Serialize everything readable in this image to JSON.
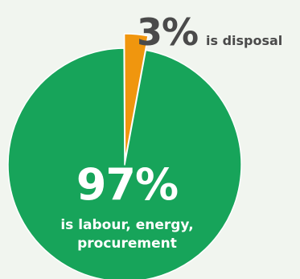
{
  "chart_data": {
    "type": "pie",
    "slices": [
      {
        "label": "is disposal",
        "value": 3,
        "value_label": "3%",
        "color": "#f0960e"
      },
      {
        "label": "is labour, energy, procurement",
        "label_lines": [
          "is labour, energy,",
          "procurement"
        ],
        "value": 97,
        "value_label": "97%",
        "color": "#17a45a"
      }
    ]
  },
  "colors": {
    "background": "#f1f5ef",
    "slice_separator": "#ffffff",
    "callout_text": "#4a4a4a",
    "inner_text": "#ffffff"
  }
}
